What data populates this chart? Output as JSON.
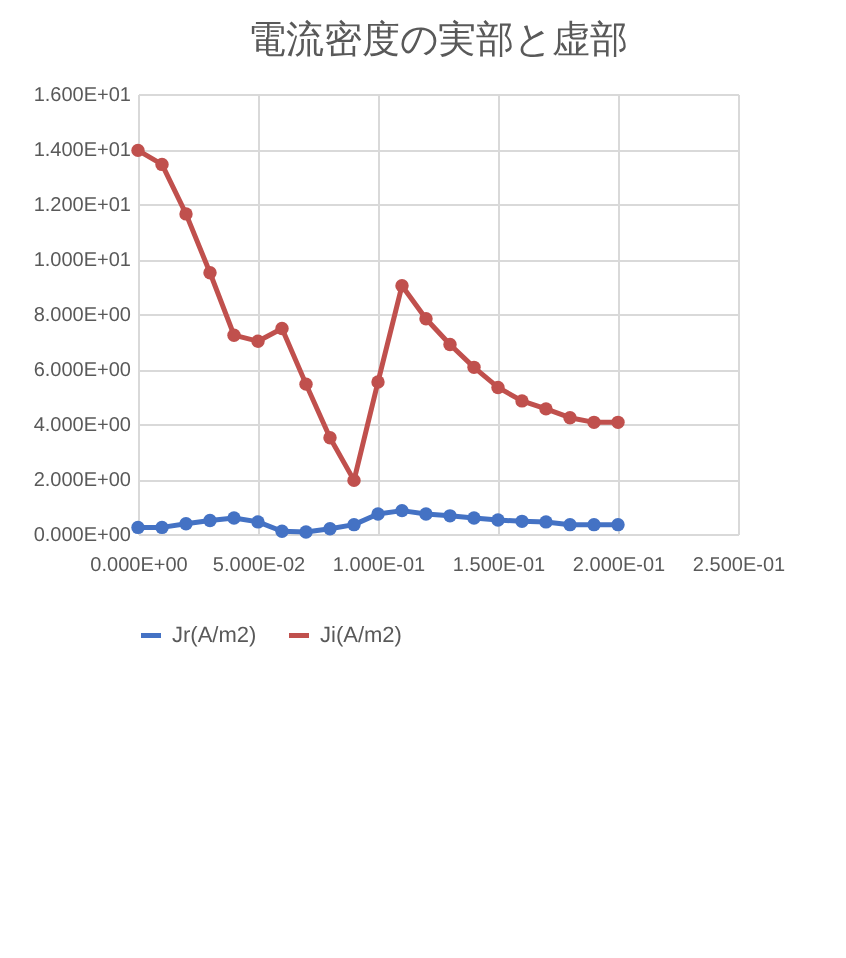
{
  "chart_data": {
    "type": "line",
    "title": "電流密度の実部と虚部",
    "x": [
      0,
      0.01,
      0.02,
      0.03,
      0.04,
      0.05,
      0.06,
      0.07,
      0.08,
      0.09,
      0.1,
      0.11,
      0.12,
      0.13,
      0.14,
      0.15,
      0.16,
      0.17,
      0.18,
      0.19,
      0.2
    ],
    "series": [
      {
        "name": "Jr(A/m2)",
        "color": "#4472c4",
        "values": [
          0.24,
          0.24,
          0.37,
          0.49,
          0.58,
          0.44,
          0.1,
          0.07,
          0.19,
          0.34,
          0.73,
          0.85,
          0.73,
          0.66,
          0.58,
          0.51,
          0.46,
          0.44,
          0.34,
          0.34,
          0.34
        ]
      },
      {
        "name": "Ji(A/m2)",
        "color": "#c0504d",
        "values": [
          13.95,
          13.44,
          11.64,
          9.5,
          7.23,
          7.01,
          7.47,
          5.45,
          3.5,
          1.95,
          5.53,
          9.03,
          7.83,
          6.89,
          6.06,
          5.33,
          4.84,
          4.55,
          4.23,
          4.06,
          4.06
        ]
      }
    ],
    "xlim": [
      0,
      0.25
    ],
    "xticks": [
      {
        "value": 0,
        "label": "0.000E+00"
      },
      {
        "value": 0.05,
        "label": "5.000E-02"
      },
      {
        "value": 0.1,
        "label": "1.000E-01"
      },
      {
        "value": 0.15,
        "label": "1.500E-01"
      },
      {
        "value": 0.2,
        "label": "2.000E-01"
      },
      {
        "value": 0.25,
        "label": "2.500E-01"
      }
    ],
    "ylim": [
      0,
      16
    ],
    "yticks": [
      {
        "value": 0,
        "label": "0.000E+00"
      },
      {
        "value": 2,
        "label": "2.000E+00"
      },
      {
        "value": 4,
        "label": "4.000E+00"
      },
      {
        "value": 6,
        "label": "6.000E+00"
      },
      {
        "value": 8,
        "label": "8.000E+00"
      },
      {
        "value": 10,
        "label": "1.000E+01"
      },
      {
        "value": 12,
        "label": "1.200E+01"
      },
      {
        "value": 14,
        "label": "1.400E+01"
      },
      {
        "value": 16,
        "label": "1.600E+01"
      }
    ],
    "grid": true,
    "legend": "bottom",
    "marker": "circle",
    "line_style": "solid"
  }
}
